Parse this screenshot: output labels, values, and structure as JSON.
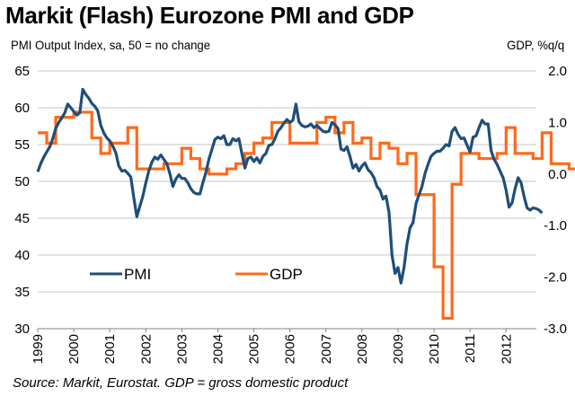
{
  "chart_data": {
    "type": "line",
    "title": "Markit (Flash) Eurozone PMI and GDP",
    "ylabel_left": "PMI Output Index, sa, 50 = no change",
    "ylabel_right": "GDP, %q/q",
    "source": "Source: Markit, Eurostat. GDP = gross domestic product",
    "grid": true,
    "legend_placement": "lower-left inside",
    "x_start": "1999-01",
    "x_ticks": [
      "1999",
      "2000",
      "2001",
      "2002",
      "2003",
      "2004",
      "2005",
      "2006",
      "2007",
      "2008",
      "2009",
      "2010",
      "2011",
      "2012"
    ],
    "ylim_left": [
      30,
      65
    ],
    "yticks_left": [
      "65",
      "60",
      "55",
      "50",
      "45",
      "40",
      "35",
      "30"
    ],
    "ylim_right": [
      -3.0,
      2.0
    ],
    "yticks_right": [
      "2.0",
      "1.0",
      "0.0",
      "-1.0",
      "-2.0",
      "-3.0"
    ],
    "series": [
      {
        "name": "PMI",
        "axis": "left",
        "color": "#1F4E79",
        "frequency": "monthly",
        "values": [
          51.3,
          52.4,
          53.3,
          54.0,
          54.7,
          55.8,
          57.2,
          58.0,
          58.6,
          59.3,
          60.5,
          60.0,
          59.5,
          59.0,
          59.3,
          62.5,
          61.8,
          61.3,
          60.6,
          60.2,
          59.6,
          57.6,
          56.6,
          55.9,
          55.5,
          54.8,
          53.9,
          52.1,
          51.4,
          51.5,
          51.1,
          50.6,
          47.8,
          45.2,
          46.6,
          48.0,
          49.8,
          51.4,
          52.6,
          53.3,
          53.0,
          53.6,
          53.0,
          52.4,
          51.1,
          49.3,
          50.3,
          50.9,
          50.4,
          50.4,
          49.8,
          49.0,
          48.5,
          48.3,
          48.3,
          49.8,
          51.2,
          53.0,
          54.3,
          55.7,
          56.0,
          55.8,
          56.2,
          55.0,
          55.0,
          55.8,
          55.5,
          55.8,
          53.8,
          51.8,
          53.1,
          53.3,
          52.7,
          53.2,
          52.5,
          53.4,
          53.8,
          54.9,
          55.0,
          55.8,
          56.8,
          57.3,
          57.9,
          58.4,
          58.0,
          58.3,
          60.5,
          58.1,
          57.6,
          57.4,
          57.5,
          57.8,
          57.3,
          57.6,
          57.2,
          56.8,
          56.7,
          56.8,
          58.0,
          57.7,
          57.2,
          54.4,
          54.2,
          54.7,
          53.4,
          51.8,
          52.3,
          51.4,
          52.1,
          52.5,
          51.6,
          51.2,
          50.5,
          49.3,
          48.8,
          47.6,
          48.0,
          45.8,
          40.0,
          37.5,
          38.3,
          36.2,
          38.3,
          41.5,
          43.7,
          44.4,
          47.0,
          48.2,
          49.3,
          51.1,
          52.3,
          53.4,
          53.8,
          54.1,
          54.1,
          54.5,
          55.0,
          54.8,
          56.8,
          57.3,
          56.4,
          55.8,
          55.9,
          54.9,
          54.0,
          56.0,
          56.2,
          57.3,
          58.3,
          57.8,
          57.8,
          54.2,
          53.0,
          52.3,
          51.4,
          50.5,
          48.8,
          46.5,
          47.1,
          49.0,
          50.5,
          49.8,
          47.9,
          46.4,
          46.1,
          46.4,
          46.3,
          46.1,
          45.7
        ]
      },
      {
        "name": "GDP",
        "axis": "right",
        "color": "#FF6A1A",
        "frequency": "quarterly",
        "values": [
          0.8,
          0.6,
          1.1,
          1.1,
          1.2,
          1.2,
          0.7,
          0.4,
          0.6,
          0.6,
          0.9,
          0.1,
          0.1,
          0.1,
          0.2,
          0.2,
          0.5,
          0.3,
          0.1,
          0.0,
          0.0,
          0.1,
          0.2,
          0.4,
          0.6,
          0.7,
          1.0,
          1.0,
          0.6,
          0.6,
          0.6,
          1.0,
          1.1,
          0.8,
          1.0,
          0.6,
          0.7,
          0.3,
          0.6,
          0.5,
          0.2,
          0.4,
          -0.4,
          -0.4,
          -1.8,
          -2.8,
          -0.2,
          0.4,
          0.4,
          0.3,
          0.3,
          0.4,
          0.9,
          0.4,
          0.4,
          0.3,
          0.8,
          0.2,
          0.2,
          0.1,
          -0.3,
          -0.3,
          0.1,
          -0.1
        ]
      }
    ]
  }
}
